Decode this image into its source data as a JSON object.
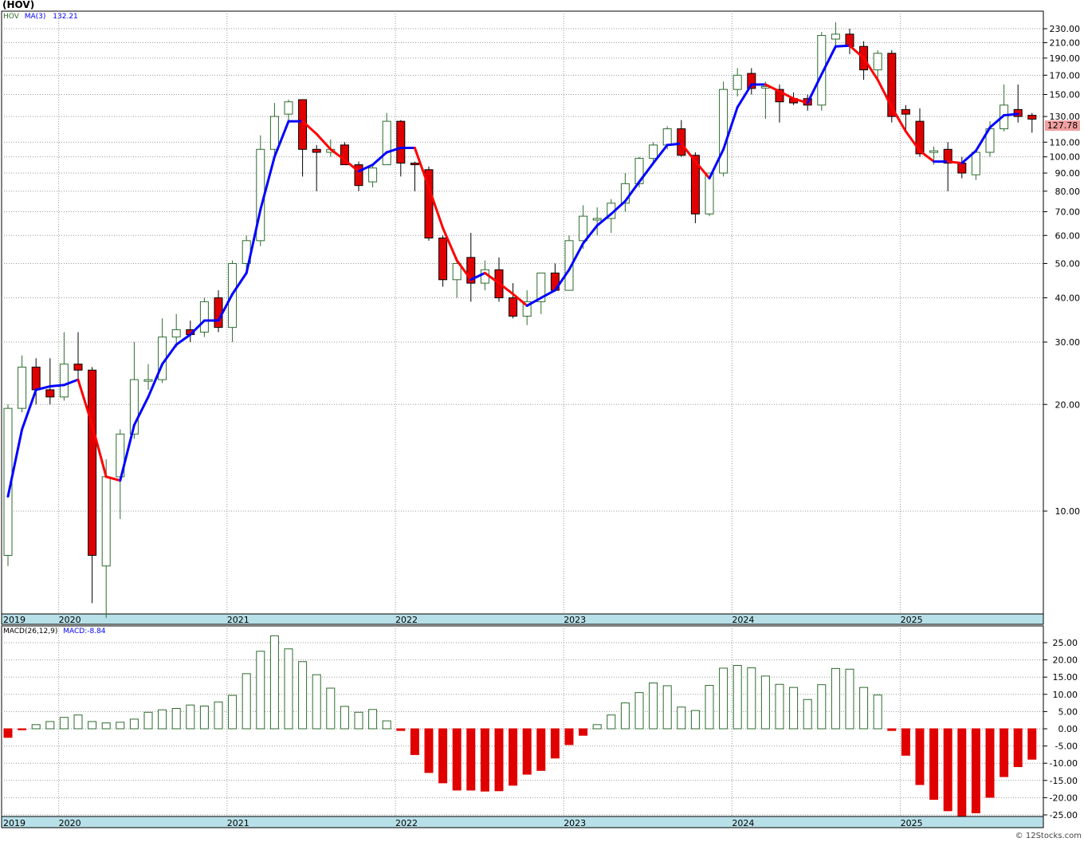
{
  "header": {
    "ticker": "(HOV)"
  },
  "legend": {
    "price_symbol": "HOV",
    "ma_label": "MA(3)",
    "ma_value": "132.21",
    "macd_params": "MACD(26,12,9)",
    "macd_value": "MACD:-8.84"
  },
  "last_price": "127.78",
  "credit": "© 12Stocks.com",
  "colors": {
    "up": "#2e6b2e",
    "down": "#e00000",
    "ma_up": "#0000ff",
    "ma_down": "#ff0000",
    "axis_band": "#b8e0e8",
    "grid": "#999999"
  },
  "chart_data": [
    {
      "type": "candlestick",
      "title": "",
      "scale": "log",
      "ylim": [
        6,
        260
      ],
      "yticks": [
        "10.00",
        "20.00",
        "30.00",
        "40.00",
        "50.00",
        "60.00",
        "70.00",
        "80.00",
        "90.00",
        "100.00",
        "110.00",
        "130.00",
        "150.00",
        "170.00",
        "190.00",
        "210.00",
        "230.00"
      ],
      "x_labels": [
        "2019",
        "2020",
        "2021",
        "2022",
        "2023",
        "2024",
        "2025"
      ],
      "grid": true,
      "candles": [
        {
          "date": "2019-12",
          "o": 7.5,
          "h": 20,
          "l": 7,
          "c": 19.5
        },
        {
          "date": "2020-01",
          "o": 19.5,
          "h": 27.5,
          "l": 19,
          "c": 25.5
        },
        {
          "date": "2020-02",
          "o": 25.5,
          "h": 27,
          "l": 20,
          "c": 22
        },
        {
          "date": "2020-03",
          "o": 22,
          "h": 27,
          "l": 20,
          "c": 21
        },
        {
          "date": "2020-04",
          "o": 21,
          "h": 32,
          "l": 20.5,
          "c": 26
        },
        {
          "date": "2020-05",
          "o": 26,
          "h": 32,
          "l": 23,
          "c": 25
        },
        {
          "date": "2020-06",
          "o": 25,
          "h": 25.5,
          "l": 5.5,
          "c": 7.5
        },
        {
          "date": "2020-07",
          "o": 7,
          "h": 14,
          "l": 5,
          "c": 12.5
        },
        {
          "date": "2020-08",
          "o": 12.5,
          "h": 17,
          "l": 9.5,
          "c": 16.5
        },
        {
          "date": "2020-09",
          "o": 16.5,
          "h": 30,
          "l": 16,
          "c": 23.5
        },
        {
          "date": "2020-10",
          "o": 23.5,
          "h": 26,
          "l": 22,
          "c": 23.5
        },
        {
          "date": "2020-11",
          "o": 23.5,
          "h": 35,
          "l": 23,
          "c": 31
        },
        {
          "date": "2020-12",
          "o": 31,
          "h": 36,
          "l": 29,
          "c": 32.5
        },
        {
          "date": "2021-01",
          "o": 32.5,
          "h": 34.5,
          "l": 30,
          "c": 31.5
        },
        {
          "date": "2021-02",
          "o": 32,
          "h": 40,
          "l": 31,
          "c": 39
        },
        {
          "date": "2021-03",
          "o": 40,
          "h": 42,
          "l": 32,
          "c": 33
        },
        {
          "date": "2021-04",
          "o": 33,
          "h": 51,
          "l": 30,
          "c": 50
        },
        {
          "date": "2021-05",
          "o": 50,
          "h": 60,
          "l": 48,
          "c": 58
        },
        {
          "date": "2021-06",
          "o": 58,
          "h": 115,
          "l": 56,
          "c": 105
        },
        {
          "date": "2021-07",
          "o": 105,
          "h": 142,
          "l": 100,
          "c": 130
        },
        {
          "date": "2021-08",
          "o": 132,
          "h": 145,
          "l": 125,
          "c": 143
        },
        {
          "date": "2021-09",
          "o": 145,
          "h": 145,
          "l": 88,
          "c": 105
        },
        {
          "date": "2021-10",
          "o": 105,
          "h": 108,
          "l": 80,
          "c": 103
        },
        {
          "date": "2021-11",
          "o": 103,
          "h": 112,
          "l": 100,
          "c": 105
        },
        {
          "date": "2021-12",
          "o": 108,
          "h": 110,
          "l": 95,
          "c": 95
        },
        {
          "date": "2022-01",
          "o": 95,
          "h": 97,
          "l": 80,
          "c": 83
        },
        {
          "date": "2022-02",
          "o": 85,
          "h": 95,
          "l": 82,
          "c": 93
        },
        {
          "date": "2022-03",
          "o": 95,
          "h": 133,
          "l": 95,
          "c": 126
        },
        {
          "date": "2022-04",
          "o": 126,
          "h": 127,
          "l": 88,
          "c": 96
        },
        {
          "date": "2022-05",
          "o": 96,
          "h": 97,
          "l": 80,
          "c": 95
        },
        {
          "date": "2022-06",
          "o": 92,
          "h": 94,
          "l": 58,
          "c": 59
        },
        {
          "date": "2022-07",
          "o": 59,
          "h": 60,
          "l": 43,
          "c": 45
        },
        {
          "date": "2022-08",
          "o": 45,
          "h": 52,
          "l": 40,
          "c": 50
        },
        {
          "date": "2022-09",
          "o": 52,
          "h": 61,
          "l": 39,
          "c": 44
        },
        {
          "date": "2022-10",
          "o": 44,
          "h": 51,
          "l": 42,
          "c": 48
        },
        {
          "date": "2022-11",
          "o": 48,
          "h": 52,
          "l": 39,
          "c": 40
        },
        {
          "date": "2022-12",
          "o": 40,
          "h": 44,
          "l": 35,
          "c": 35.5
        },
        {
          "date": "2023-01",
          "o": 35.5,
          "h": 42,
          "l": 33.5,
          "c": 39
        },
        {
          "date": "2023-02",
          "o": 39,
          "h": 47,
          "l": 36,
          "c": 47
        },
        {
          "date": "2023-03",
          "o": 47,
          "h": 50,
          "l": 42,
          "c": 42
        },
        {
          "date": "2023-04",
          "o": 42,
          "h": 60,
          "l": 42,
          "c": 58
        },
        {
          "date": "2023-05",
          "o": 58,
          "h": 73,
          "l": 55,
          "c": 68
        },
        {
          "date": "2023-06",
          "o": 67,
          "h": 72,
          "l": 60,
          "c": 67
        },
        {
          "date": "2023-07",
          "o": 67,
          "h": 76,
          "l": 61,
          "c": 74
        },
        {
          "date": "2023-08",
          "o": 74,
          "h": 90,
          "l": 70,
          "c": 84
        },
        {
          "date": "2023-09",
          "o": 84,
          "h": 100,
          "l": 82,
          "c": 99
        },
        {
          "date": "2023-10",
          "o": 99,
          "h": 110,
          "l": 96,
          "c": 108
        },
        {
          "date": "2023-11",
          "o": 108,
          "h": 122,
          "l": 105,
          "c": 120
        },
        {
          "date": "2023-12",
          "o": 120,
          "h": 127,
          "l": 100,
          "c": 101
        },
        {
          "date": "2024-01",
          "o": 101,
          "h": 103,
          "l": 65,
          "c": 69
        },
        {
          "date": "2024-02",
          "o": 69,
          "h": 90,
          "l": 68,
          "c": 90
        },
        {
          "date": "2024-03",
          "o": 90,
          "h": 163,
          "l": 88,
          "c": 155
        },
        {
          "date": "2024-04",
          "o": 155,
          "h": 178,
          "l": 148,
          "c": 170
        },
        {
          "date": "2024-05",
          "o": 172,
          "h": 178,
          "l": 150,
          "c": 156
        },
        {
          "date": "2024-06",
          "o": 158,
          "h": 163,
          "l": 128,
          "c": 158
        },
        {
          "date": "2024-07",
          "o": 155,
          "h": 160,
          "l": 125,
          "c": 143
        },
        {
          "date": "2024-08",
          "o": 146,
          "h": 152,
          "l": 140,
          "c": 142
        },
        {
          "date": "2024-09",
          "o": 146,
          "h": 150,
          "l": 135,
          "c": 140
        },
        {
          "date": "2024-10",
          "o": 140,
          "h": 225,
          "l": 135,
          "c": 220
        },
        {
          "date": "2024-11",
          "o": 215,
          "h": 240,
          "l": 202,
          "c": 222
        },
        {
          "date": "2024-12",
          "o": 222,
          "h": 230,
          "l": 195,
          "c": 205
        },
        {
          "date": "2025-01",
          "o": 205,
          "h": 212,
          "l": 165,
          "c": 176
        },
        {
          "date": "2025-02",
          "o": 176,
          "h": 200,
          "l": 165,
          "c": 196
        },
        {
          "date": "2025-03",
          "o": 196,
          "h": 200,
          "l": 125,
          "c": 130
        },
        {
          "date": "2025-04",
          "o": 136,
          "h": 140,
          "l": 118,
          "c": 132
        },
        {
          "date": "2025-05",
          "o": 126,
          "h": 137,
          "l": 100,
          "c": 102
        },
        {
          "date": "2025-06",
          "o": 104,
          "h": 107,
          "l": 95,
          "c": 104
        },
        {
          "date": "2025-07",
          "o": 105,
          "h": 110,
          "l": 80,
          "c": 96
        },
        {
          "date": "2025-08",
          "o": 96,
          "h": 100,
          "l": 87,
          "c": 90
        },
        {
          "date": "2025-09",
          "o": 89,
          "h": 105,
          "l": 86,
          "c": 103
        },
        {
          "date": "2025-10",
          "o": 103,
          "h": 126,
          "l": 100,
          "c": 120
        },
        {
          "date": "2025-11",
          "o": 120,
          "h": 160,
          "l": 118,
          "c": 140
        },
        {
          "date": "2025-12",
          "o": 136,
          "h": 160,
          "l": 125,
          "c": 130
        },
        {
          "date": "2026-01",
          "o": 131,
          "h": 133,
          "l": 117,
          "c": 127.78
        }
      ],
      "ma3": [
        11,
        17,
        22,
        22.5,
        22.7,
        23.5,
        17.5,
        12.5,
        12.2,
        17.5,
        21,
        26,
        29.5,
        31.5,
        34.5,
        34.5,
        41,
        47,
        71,
        100,
        126,
        126,
        116,
        105,
        98,
        91,
        95,
        103,
        106,
        106,
        82,
        63,
        51,
        45,
        47,
        44,
        41,
        38,
        40,
        42,
        48,
        57,
        64,
        69,
        75,
        85,
        96,
        108,
        109,
        97,
        87,
        105,
        138,
        160,
        160,
        153,
        146,
        142,
        171,
        205,
        206,
        190,
        165,
        138,
        118,
        104,
        97,
        97,
        96,
        104,
        121,
        131,
        132.21
      ],
      "ma_color_by_trend": true
    },
    {
      "type": "bar",
      "title": "",
      "ylim": [
        -26,
        28
      ],
      "yticks": [
        "25.00",
        "20.00",
        "15.00",
        "10.00",
        "5.00",
        "0.00",
        "-5.00",
        "-10.00",
        "-15.00",
        "-20.00",
        "-25.00"
      ],
      "x_labels": [
        "2019",
        "2020",
        "2021",
        "2022",
        "2023",
        "2024",
        "2025"
      ],
      "values": [
        -2.5,
        -0.3,
        1.2,
        2.1,
        3.3,
        4,
        2.1,
        1.7,
        1.9,
        2.8,
        4.8,
        5.5,
        5.9,
        6.9,
        6.6,
        7.8,
        9.7,
        16,
        22.5,
        27,
        23.2,
        19.5,
        15.7,
        11.8,
        6.5,
        4.8,
        5.6,
        2.3,
        -0.5,
        -7.5,
        -12.7,
        -15.7,
        -17.8,
        -17.8,
        -18.1,
        -18,
        -16.4,
        -13.2,
        -12.1,
        -8.5,
        -4.6,
        -1.9,
        1.2,
        4,
        7.5,
        10.5,
        13.3,
        12.5,
        6.3,
        5.3,
        12.6,
        17.6,
        18.4,
        17.7,
        15.3,
        12.9,
        12,
        8.5,
        12.8,
        17.5,
        17.3,
        12,
        9.8,
        -0.5,
        -7.7,
        -16.2,
        -20.5,
        -23.8,
        -26,
        -24.4,
        -19.9,
        -13.9,
        -11,
        -8.84
      ]
    }
  ]
}
